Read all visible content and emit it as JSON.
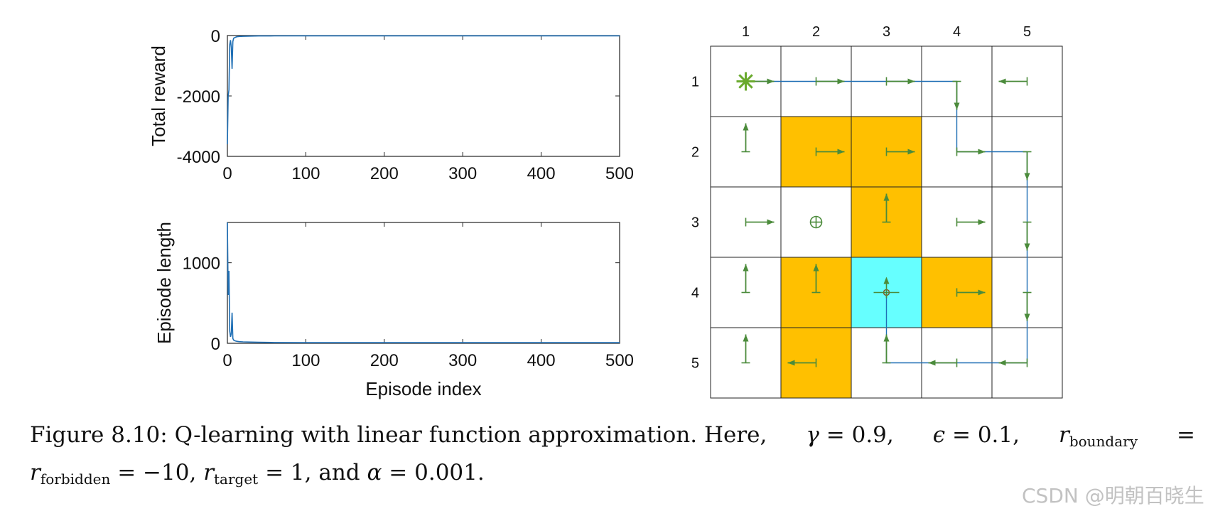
{
  "colors": {
    "line": "#1f6fb5",
    "arrow": "#4b8b3b",
    "forbidden": "#ffc000",
    "target": "#66ffff",
    "start": "#6aaa2e"
  },
  "chart_data": [
    {
      "type": "line",
      "title": "",
      "xlabel": "",
      "ylabel": "Total reward",
      "xlim": [
        0,
        500
      ],
      "ylim": [
        -4000,
        0
      ],
      "xticks": [
        "0",
        "100",
        "200",
        "300",
        "400",
        "500"
      ],
      "yticks": [
        "0",
        "-2000",
        "-4000"
      ],
      "series": [
        {
          "name": "Total reward",
          "x": [
            0,
            1,
            2,
            3,
            4,
            5,
            6,
            7,
            8,
            10,
            12,
            15,
            20,
            30,
            40,
            60,
            100,
            200,
            300,
            400,
            500
          ],
          "values": [
            -3600,
            -2000,
            -1800,
            -300,
            -150,
            -400,
            -1100,
            -200,
            -90,
            -60,
            -40,
            -30,
            -25,
            -20,
            -15,
            -12,
            -10,
            -10,
            -10,
            -10,
            -10
          ]
        }
      ]
    },
    {
      "type": "line",
      "title": "",
      "xlabel": "Episode index",
      "ylabel": "Episode length",
      "xlim": [
        0,
        500
      ],
      "ylim": [
        0,
        1500
      ],
      "xticks": [
        "0",
        "100",
        "200",
        "300",
        "400",
        "500"
      ],
      "yticks": [
        "0",
        "1000"
      ],
      "series": [
        {
          "name": "Episode length",
          "x": [
            0,
            1,
            2,
            3,
            4,
            5,
            6,
            7,
            8,
            10,
            12,
            15,
            20,
            30,
            40,
            60,
            100,
            200,
            300,
            400,
            500
          ],
          "values": [
            1500,
            600,
            900,
            150,
            80,
            120,
            380,
            60,
            40,
            30,
            25,
            20,
            18,
            15,
            12,
            10,
            8,
            8,
            8,
            8,
            8
          ]
        }
      ]
    }
  ],
  "grid": {
    "col_labels": [
      "1",
      "2",
      "3",
      "4",
      "5"
    ],
    "row_labels": [
      "1",
      "2",
      "3",
      "4",
      "5"
    ],
    "cells": [
      [
        "start",
        "normal",
        "normal",
        "normal",
        "normal"
      ],
      [
        "normal",
        "forbidden",
        "forbidden",
        "normal",
        "normal"
      ],
      [
        "normal",
        "normal",
        "forbidden",
        "normal",
        "normal"
      ],
      [
        "normal",
        "forbidden",
        "target",
        "forbidden",
        "normal"
      ],
      [
        "normal",
        "forbidden",
        "normal",
        "normal",
        "normal"
      ]
    ],
    "policy": [
      [
        "right",
        "right",
        "right",
        "down",
        "left"
      ],
      [
        "up",
        "right",
        "right",
        "right",
        "down"
      ],
      [
        "right",
        "circle",
        "up",
        "right",
        "down"
      ],
      [
        "up",
        "up",
        "stay",
        "right",
        "down"
      ],
      [
        "up",
        "left",
        "up",
        "left",
        "left"
      ]
    ],
    "trajectory": [
      [
        1,
        1
      ],
      [
        1,
        4
      ],
      [
        2,
        4
      ],
      [
        2,
        5
      ],
      [
        5,
        5
      ],
      [
        5,
        3
      ],
      [
        4,
        3
      ]
    ]
  },
  "caption": {
    "prefix": "Figure 8.10:  Q-learning with linear function approximation.  Here,",
    "gamma_sym": "γ",
    "gamma_val": "= 0.9,",
    "eps_sym": "ϵ",
    "eps_val": "= 0.1,",
    "r_sym": "r",
    "boundary_sub": "boundary",
    "eq": "=",
    "forbidden_sub": "forbidden",
    "forbidden_val": "= −10,",
    "target_sub": "target",
    "target_val": "= 1, and",
    "alpha_sym": "α",
    "alpha_val": "= 0.001."
  },
  "watermark": "CSDN @明朝百晓生"
}
